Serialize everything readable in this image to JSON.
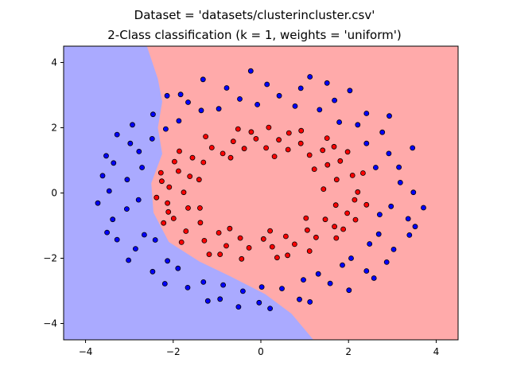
{
  "chart_data": {
    "type": "scatter",
    "title": "Dataset = 'datasets/clusterincluster.csv'",
    "subtitle": "2-Class classification (k = 1, weights = 'uniform')",
    "xlabel": "",
    "ylabel": "",
    "xlim": [
      -4.5,
      4.5
    ],
    "ylim": [
      -4.5,
      4.5
    ],
    "xticks": [
      "−4",
      "−2",
      "0",
      "2",
      "4"
    ],
    "xtick_values": [
      -4,
      -2,
      0,
      2,
      4
    ],
    "yticks": [
      "4",
      "2",
      "0",
      "−2",
      "−4"
    ],
    "ytick_values": [
      4,
      2,
      0,
      -2,
      -4
    ],
    "grid": false,
    "colors": {
      "region_blue": "#aaaaff",
      "region_red": "#ffaaaa",
      "point_blue": "#0000ff",
      "point_red": "#ff0000",
      "point_edge": "#000000"
    },
    "decision_boundary": [
      [
        -2.6,
        4.5
      ],
      [
        -2.35,
        3.5
      ],
      [
        -2.25,
        2.8
      ],
      [
        -2.35,
        2.0
      ],
      [
        -2.25,
        1.2
      ],
      [
        -2.5,
        0.3
      ],
      [
        -2.45,
        -0.6
      ],
      [
        -2.1,
        -1.5
      ],
      [
        -1.4,
        -2.1
      ],
      [
        -0.7,
        -2.55
      ],
      [
        0.1,
        -3.1
      ],
      [
        0.7,
        -3.7
      ],
      [
        1.2,
        -4.5
      ]
    ],
    "series": [
      {
        "points": [
          [
            3.48,
            0.02
          ],
          [
            3.15,
            0.79
          ],
          [
            2.77,
            1.86
          ],
          [
            2.41,
            2.44
          ],
          [
            1.68,
            2.84
          ],
          [
            0.91,
            3.21
          ],
          [
            0.14,
            3.33
          ],
          [
            -0.78,
            3.22
          ],
          [
            -1.66,
            2.78
          ],
          [
            -2.46,
            2.41
          ],
          [
            -2.98,
            1.52
          ],
          [
            -3.36,
            0.92
          ],
          [
            -3.46,
            0.06
          ],
          [
            -3.38,
            -0.81
          ],
          [
            -2.86,
            -1.71
          ],
          [
            -2.47,
            -2.41
          ],
          [
            -1.67,
            -2.9
          ],
          [
            -0.93,
            -3.25
          ],
          [
            -0.04,
            -3.36
          ],
          [
            0.88,
            -3.26
          ],
          [
            1.58,
            -2.77
          ],
          [
            2.41,
            -2.39
          ],
          [
            3.03,
            -1.73
          ],
          [
            3.36,
            -0.79
          ],
          [
            3.18,
            0.32
          ],
          [
            2.92,
            1.21
          ],
          [
            2.21,
            2.09
          ],
          [
            1.34,
            2.55
          ],
          [
            0.42,
            2.98
          ],
          [
            -0.48,
            2.88
          ],
          [
            -1.36,
            2.53
          ],
          [
            -2.17,
            1.96
          ],
          [
            -2.78,
            1.27
          ],
          [
            -3.05,
            0.41
          ],
          [
            -3.06,
            -0.49
          ],
          [
            -2.66,
            -1.28
          ],
          [
            -2.13,
            -2.08
          ],
          [
            -1.31,
            -2.73
          ],
          [
            -0.41,
            -3.01
          ],
          [
            0.48,
            -2.93
          ],
          [
            1.31,
            -2.48
          ],
          [
            2.06,
            -2.0
          ],
          [
            2.69,
            -1.26
          ],
          [
            2.97,
            -0.41
          ],
          [
            3.71,
            -0.45
          ],
          [
            3.46,
            1.38
          ],
          [
            2.93,
            2.36
          ],
          [
            2.03,
            3.14
          ],
          [
            1.12,
            3.56
          ],
          [
            -0.23,
            3.74
          ],
          [
            -1.32,
            3.48
          ],
          [
            -2.14,
            2.98
          ],
          [
            -2.93,
            2.09
          ],
          [
            -3.53,
            1.14
          ],
          [
            -3.72,
            -0.31
          ],
          [
            -3.51,
            -1.21
          ],
          [
            -3.02,
            -2.06
          ],
          [
            -2.19,
            -2.78
          ],
          [
            -1.21,
            -3.31
          ],
          [
            0.21,
            -3.54
          ],
          [
            1.12,
            -3.34
          ],
          [
            2.01,
            -2.98
          ],
          [
            2.87,
            -2.12
          ],
          [
            3.39,
            -1.29
          ],
          [
            2.62,
            0.78
          ],
          [
            2.41,
            1.52
          ],
          [
            1.79,
            2.17
          ],
          [
            0.78,
            2.66
          ],
          [
            -0.08,
            2.71
          ],
          [
            -0.96,
            2.58
          ],
          [
            -1.87,
            2.21
          ],
          [
            -2.48,
            1.66
          ],
          [
            -2.71,
            0.78
          ],
          [
            -2.79,
            -0.21
          ],
          [
            -2.41,
            -1.44
          ],
          [
            -1.89,
            -2.31
          ],
          [
            -0.86,
            -2.82
          ],
          [
            0.02,
            -2.88
          ],
          [
            0.97,
            -2.66
          ],
          [
            1.86,
            -2.21
          ],
          [
            2.48,
            -1.56
          ],
          [
            2.71,
            -0.66
          ],
          [
            -3.28,
            -1.43
          ],
          [
            -3.61,
            0.53
          ],
          [
            3.52,
            -1.03
          ],
          [
            1.51,
            3.37
          ],
          [
            -1.83,
            3.02
          ],
          [
            -3.28,
            1.79
          ],
          [
            -0.51,
            -3.49
          ],
          [
            2.58,
            -2.61
          ]
        ]
      },
      {
        "points": [
          [
            2.21,
            0.03
          ],
          [
            2.09,
            0.54
          ],
          [
            1.81,
            0.98
          ],
          [
            1.41,
            1.31
          ],
          [
            0.91,
            1.52
          ],
          [
            0.41,
            1.63
          ],
          [
            -0.11,
            1.66
          ],
          [
            -0.63,
            1.58
          ],
          [
            -1.12,
            1.39
          ],
          [
            -1.56,
            1.08
          ],
          [
            -1.88,
            0.67
          ],
          [
            -2.09,
            0.18
          ],
          [
            -2.13,
            -0.31
          ],
          [
            -1.99,
            -0.78
          ],
          [
            -1.71,
            -1.17
          ],
          [
            -1.29,
            -1.46
          ],
          [
            -0.79,
            -1.62
          ],
          [
            -0.27,
            -1.68
          ],
          [
            0.26,
            -1.65
          ],
          [
            0.77,
            -1.57
          ],
          [
            1.26,
            -1.36
          ],
          [
            1.68,
            -1.03
          ],
          [
            1.97,
            -0.62
          ],
          [
            2.14,
            -0.21
          ],
          [
            1.73,
            0.41
          ],
          [
            1.52,
            0.86
          ],
          [
            1.11,
            1.16
          ],
          [
            0.62,
            1.33
          ],
          [
            0.12,
            1.38
          ],
          [
            -0.38,
            1.36
          ],
          [
            -0.87,
            1.21
          ],
          [
            -1.31,
            0.94
          ],
          [
            -1.62,
            0.51
          ],
          [
            -1.76,
            0.02
          ],
          [
            -1.66,
            -0.46
          ],
          [
            -1.38,
            -0.91
          ],
          [
            -0.96,
            -1.22
          ],
          [
            -0.47,
            -1.38
          ],
          [
            0.06,
            -1.41
          ],
          [
            0.57,
            -1.33
          ],
          [
            1.06,
            -1.14
          ],
          [
            1.47,
            -0.81
          ],
          [
            1.71,
            -0.37
          ],
          [
            2.41,
            -0.36
          ],
          [
            2.33,
            0.61
          ],
          [
            1.98,
            1.26
          ],
          [
            1.51,
            1.68
          ],
          [
            0.92,
            1.91
          ],
          [
            0.18,
            2.01
          ],
          [
            -0.52,
            1.96
          ],
          [
            -1.26,
            1.73
          ],
          [
            -1.86,
            1.28
          ],
          [
            -2.28,
            0.62
          ],
          [
            -2.38,
            -0.14
          ],
          [
            -2.22,
            -0.92
          ],
          [
            -1.81,
            -1.51
          ],
          [
            -1.18,
            -1.88
          ],
          [
            -0.44,
            -2.02
          ],
          [
            0.37,
            -1.98
          ],
          [
            1.11,
            -1.78
          ],
          [
            1.72,
            -1.38
          ],
          [
            2.16,
            -0.82
          ],
          [
            1.43,
            0.12
          ],
          [
            1.22,
            0.73
          ],
          [
            0.31,
            1.12
          ],
          [
            -0.69,
            1.08
          ],
          [
            -1.41,
            0.41
          ],
          [
            -1.39,
            -0.46
          ],
          [
            -0.71,
            -1.09
          ],
          [
            0.21,
            -1.16
          ],
          [
            1.03,
            -0.77
          ],
          [
            -1.97,
            0.96
          ],
          [
            -2.26,
            0.36
          ],
          [
            1.88,
            -1.11
          ],
          [
            0.61,
            -1.91
          ],
          [
            -0.93,
            -1.88
          ],
          [
            -2.11,
            -0.58
          ],
          [
            0.64,
            1.84
          ],
          [
            -0.22,
            1.87
          ],
          [
            1.67,
            1.42
          ]
        ]
      }
    ]
  }
}
